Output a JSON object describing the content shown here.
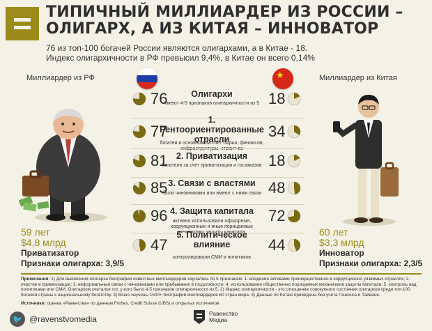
{
  "header": {
    "title": "ТИПИЧНЫЙ МИЛЛИАРДЕР ИЗ РОССИИ – ОЛИГАРХ, А ИЗ КИТАЯ – ИННОВАТОР",
    "subtitle_line1": "76 из топ-100 богачей России являются олигархами, а в Китае - 18.",
    "subtitle_line2": "Индекс олигархичности в РФ превысил 9,4%, в Китае он всего 0,14%"
  },
  "left": {
    "label": "Миллиардер из РФ",
    "age": "59 лет",
    "wealth": "$4,8 млрд",
    "role": "Приватизатор",
    "signs": "Признаки олигарха: 3,9/5"
  },
  "right": {
    "label": "Миллиардер из Китая",
    "age": "60 лет",
    "wealth": "$3,3 млрд",
    "role": "Инноватор",
    "signs": "Признаки олигарха: 2,3/5"
  },
  "criteria": [
    {
      "title": "Олигархи",
      "desc": "имеют 4-5 признаков олигархичности из 5",
      "ru": "76",
      "cn": "18",
      "ru_pct": 76,
      "cn_pct": 18
    },
    {
      "title": "1. Рентоориентированные отрасли",
      "desc": "богатеи в основном за счет сырья, финансов, инфраструктуры, строит-ва",
      "ru": "77",
      "cn": "34",
      "ru_pct": 77,
      "cn_pct": 34
    },
    {
      "title": "2. Приватизация",
      "desc": "богатели за счет приватизации и госзаказов",
      "ru": "81",
      "cn": "18",
      "ru_pct": 81,
      "cn_pct": 18
    },
    {
      "title": "3. Связи с властями",
      "desc": "были чиновниками или имеют с ними связи",
      "ru": "85",
      "cn": "48",
      "ru_pct": 85,
      "cn_pct": 48
    },
    {
      "title": "4. Защита капитала",
      "desc": "активно использовали офшорные, коррупционные и иные порицаемые механизмы защиты капитала",
      "ru": "96",
      "cn": "72",
      "ru_pct": 96,
      "cn_pct": 72
    },
    {
      "title": "5. Политическое влияние",
      "desc": "контролировали СМИ и политиков",
      "ru": "47",
      "cn": "44",
      "ru_pct": 47,
      "cn_pct": 44
    }
  ],
  "notes": {
    "label": "Примечания:",
    "text": "1) Для выявления олигарха биографии известных миллиардеров изучались по 5 признакам: 1. владение активами преимущественно в коррупционно уязвимых отраслях; 2. участие в приватизации; 3. неформальные связи с чиновниками или пребывание в госдолжности; 4. использование общественно порицаемых механизмов защиты капитала; 5. контроль над политиками или СМИ. Олигархом считался тот, у кого было 4-5 признаков олигархичности из 5. 2) Индекс олигархичности - это отношение совокупного состояния олигархов среди топ-100 богачей страны к национальному богатству. 3) Всего изучены 1500+ биографий миллиардеров 60 стран мира. 4) Данные по Китаю приведены без учета Гонконга и Тайваня.",
    "sources_label": "Источники:",
    "sources_text": "оценка «Равенства» по данным Forbes, Credit Suisse (UBS) и открытых источников"
  },
  "footer": {
    "handle": "@ravenstvomedia",
    "twitter_icon": "twitter-icon",
    "brand_line1": "Равенство",
    "brand_line2": "Медиа"
  },
  "colors": {
    "accent": "#9c8b1b",
    "background": "#f4f1e6",
    "pie_fill": "#7a6a10",
    "pie_empty": "#e8e3d2"
  }
}
